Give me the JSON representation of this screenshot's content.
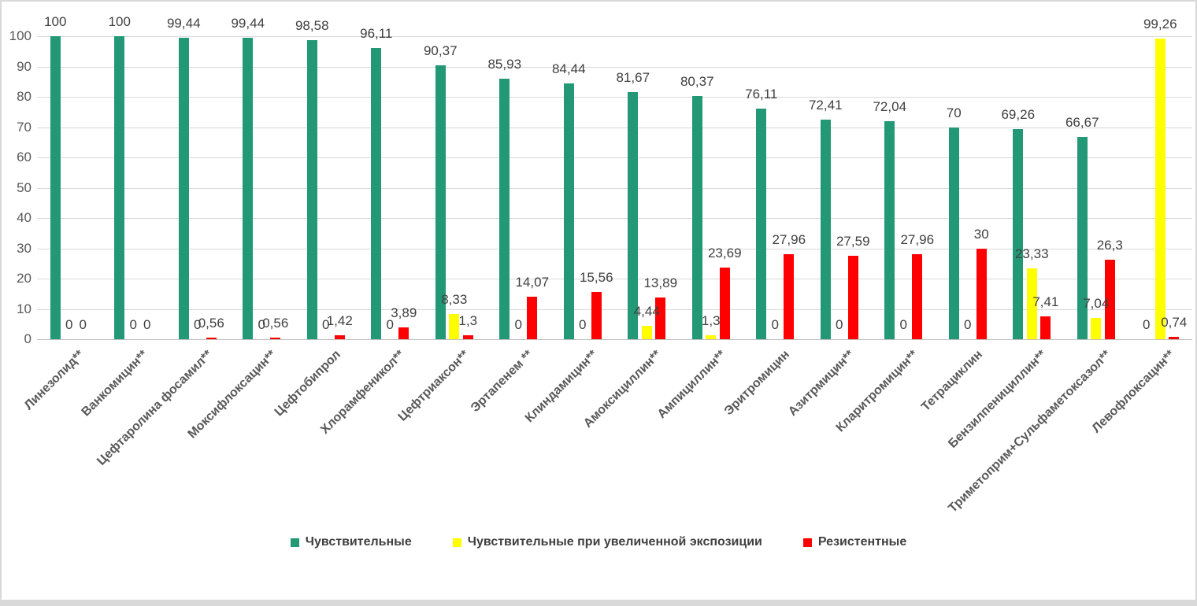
{
  "chart_data": {
    "type": "bar",
    "title": "",
    "xlabel": "",
    "ylabel": "",
    "grid": true,
    "legend_position": "bottom",
    "ylim": [
      0,
      100
    ],
    "yticks": [
      0,
      10,
      20,
      30,
      40,
      50,
      60,
      70,
      80,
      90,
      100
    ],
    "ytick_labels": [
      "0",
      "10",
      "20",
      "30",
      "40",
      "50",
      "60",
      "70",
      "80",
      "90",
      "100"
    ],
    "gridline_color": "#d9d9d9",
    "axis_text_color": "#595959",
    "data_label_color": "#404040",
    "categories": [
      "Линезолид**",
      "Ванкомицин**",
      "Цефтаролина фосамил**",
      "Моксифлоксацин**",
      "Цефтобипрол",
      "Хлорамфеникол**",
      "Цефтриаксон**",
      "Эртапенем **",
      "Клиндамицин**",
      "Амоксициллин**",
      "Ампициллин**",
      "Эритромицин",
      "Азитрмицин**",
      "Кларитромицин**",
      "Тетрациклин",
      "Бензилпенициллин**",
      "Триметоприм+Сульфаметоксазол**",
      "Левофлоксацин**"
    ],
    "series": [
      {
        "name": "Чувствительные",
        "color": "#229877",
        "values": [
          100,
          100,
          99.44,
          99.44,
          98.58,
          96.11,
          90.37,
          85.93,
          84.44,
          81.67,
          80.37,
          76.11,
          72.41,
          72.04,
          70,
          69.26,
          66.67,
          0
        ],
        "labels": [
          "100",
          "100",
          "99,44",
          "99,44",
          "98,58",
          "96,11",
          "90,37",
          "85,93",
          "84,44",
          "81,67",
          "80,37",
          "76,11",
          "72,41",
          "72,04",
          "70",
          "69,26",
          "66,67",
          "0"
        ]
      },
      {
        "name": "Чувствительные при увеличенной экспозиции",
        "color": "#ffff00",
        "values": [
          0,
          0,
          0,
          0,
          0,
          0,
          8.33,
          0,
          0,
          4.44,
          1.3,
          0,
          0,
          0,
          0,
          23.33,
          7.04,
          99.26
        ],
        "labels": [
          "0",
          "0",
          "0",
          "0",
          "0",
          "0",
          "8,33",
          "0",
          "0",
          "4,44",
          "1,3",
          "0",
          "0",
          "0",
          "0",
          "23,33",
          "7,04",
          "99,26"
        ]
      },
      {
        "name": "Резистентные",
        "color": "#ff0000",
        "values": [
          0,
          0,
          0.56,
          0.56,
          1.42,
          3.89,
          1.3,
          14.07,
          15.56,
          13.89,
          23.69,
          27.96,
          27.59,
          27.96,
          30,
          7.41,
          26.3,
          0.74
        ],
        "labels": [
          "0",
          "0",
          "0,56",
          "0,56",
          "1,42",
          "3,89",
          "1,3",
          "14,07",
          "15,56",
          "13,89",
          "23,69",
          "27,96",
          "27,59",
          "27,96",
          "30",
          "7,41",
          "26,3",
          "0,74"
        ]
      }
    ]
  }
}
